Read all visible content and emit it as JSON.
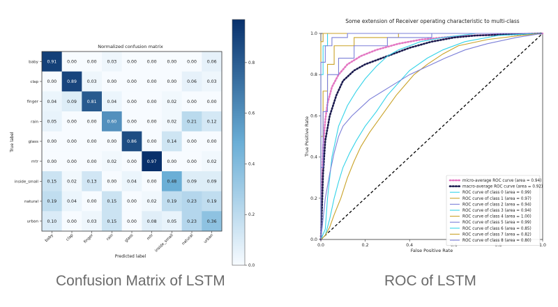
{
  "captions": {
    "left": "Confusion Matrix of LSTM",
    "right": "ROC of LSTM"
  },
  "colors": {
    "cmap_low": "#f7fbff",
    "cmap_mid": "#6aaed6",
    "cmap_high": "#08306b",
    "micro": "#e377c2",
    "macro": "#1a1a4e",
    "diagonal": "#000000",
    "class_colors": [
      "#33d3e8",
      "#c9a227",
      "#7b7fd8",
      "#33d3e8",
      "#c9a227",
      "#7b7fd8",
      "#33d3e8",
      "#c9a227",
      "#7b7fd8"
    ]
  },
  "chart_data": [
    {
      "type": "heatmap",
      "title": "Normalized confusion matrix",
      "xlabel": "Predicted label",
      "ylabel": "True label",
      "labels": [
        "baby",
        "clap",
        "finger",
        "rain",
        "glass",
        "mtr",
        "inside_small",
        "natural",
        "urban"
      ],
      "values": [
        [
          0.91,
          0.0,
          0.0,
          0.03,
          0.0,
          0.0,
          0.0,
          0.0,
          0.06
        ],
        [
          0.0,
          0.89,
          0.03,
          0.0,
          0.0,
          0.0,
          0.0,
          0.06,
          0.03
        ],
        [
          0.04,
          0.09,
          0.81,
          0.04,
          0.0,
          0.0,
          0.02,
          0.0,
          0.0
        ],
        [
          0.05,
          0.0,
          0.0,
          0.6,
          0.0,
          0.0,
          0.02,
          0.21,
          0.12
        ],
        [
          0.0,
          0.0,
          0.0,
          0.0,
          0.86,
          0.0,
          0.14,
          0.0,
          0.0
        ],
        [
          0.0,
          0.0,
          0.0,
          0.02,
          0.0,
          0.97,
          0.0,
          0.0,
          0.02
        ],
        [
          0.15,
          0.02,
          0.13,
          0.0,
          0.04,
          0.0,
          0.48,
          0.09,
          0.09
        ],
        [
          0.19,
          0.04,
          0.0,
          0.15,
          0.0,
          0.02,
          0.19,
          0.23,
          0.19
        ],
        [
          0.1,
          0.0,
          0.03,
          0.15,
          0.0,
          0.08,
          0.05,
          0.23,
          0.36
        ]
      ],
      "value_labels": [
        [
          "0.91",
          "0.00",
          "0.00",
          "0.03",
          "0.00",
          "0.00",
          "0.00",
          "0.00",
          "0.06"
        ],
        [
          "0.00",
          "0.89",
          "0.03",
          "0.00",
          "0.00",
          "0.00",
          "0.00",
          "0.06",
          "0.03"
        ],
        [
          "0.04",
          "0.09",
          "0.81",
          "0.04",
          "0.00",
          "0.00",
          "0.02",
          "0.00",
          "0.00"
        ],
        [
          "0.05",
          "0.00",
          "0.00",
          "0.60",
          "0.00",
          "0.00",
          "0.02",
          "0.21",
          "0.12"
        ],
        [
          "0.00",
          "0.00",
          "0.00",
          "0.00",
          "0.86",
          "0.00",
          "0.14",
          "0.00",
          "0.00"
        ],
        [
          "0.00",
          "0.00",
          "0.00",
          "0.02",
          "0.00",
          "0.97",
          "0.00",
          "0.00",
          "0.02"
        ],
        [
          "0.15",
          "0.02",
          "0.13",
          "0.00",
          "0.04",
          "0.00",
          "0.48",
          "0.09",
          "0.09"
        ],
        [
          "0.19",
          "0.04",
          "0.00",
          "0.15",
          "0.00",
          "0.02",
          "0.19",
          "0.23",
          "0.19"
        ],
        [
          "0.10",
          "0.00",
          "0.03",
          "0.15",
          "0.00",
          "0.08",
          "0.05",
          "0.23",
          "0.36"
        ]
      ],
      "colorbar": {
        "range": [
          0,
          0.97
        ],
        "ticks": [
          0.0,
          0.2,
          0.4,
          0.6,
          0.8
        ],
        "tick_labels": [
          "0.0",
          "0.2",
          "0.4",
          "0.6",
          "0.8"
        ]
      }
    },
    {
      "type": "line",
      "title": "Some extension of Receiver operating characteristic to multi-class",
      "xlabel": "False Positive Rate",
      "ylabel": "True Positive Rate",
      "xlim": [
        0.0,
        1.0
      ],
      "ylim": [
        0.0,
        1.0
      ],
      "xticks": [
        "0.0",
        "0.2",
        "0.4",
        "0.6",
        "0.8",
        "1.0"
      ],
      "yticks": [
        "0.0",
        "0.2",
        "0.4",
        "0.6",
        "0.8",
        "1.0"
      ],
      "legend_position": "lower right",
      "series": [
        {
          "name": "micro-average ROC curve (area = 0.94)",
          "style": "dotted",
          "color_key": "micro",
          "points": [
            [
              0,
              0
            ],
            [
              0.005,
              0.25
            ],
            [
              0.01,
              0.45
            ],
            [
              0.02,
              0.58
            ],
            [
              0.03,
              0.66
            ],
            [
              0.05,
              0.74
            ],
            [
              0.08,
              0.8
            ],
            [
              0.12,
              0.85
            ],
            [
              0.18,
              0.89
            ],
            [
              0.25,
              0.92
            ],
            [
              0.35,
              0.95
            ],
            [
              0.45,
              0.97
            ],
            [
              0.6,
              0.985
            ],
            [
              0.8,
              0.995
            ],
            [
              1,
              1
            ]
          ]
        },
        {
          "name": "macro-average ROC curve (area = 0.92)",
          "style": "dotted",
          "color_key": "macro",
          "points": [
            [
              0,
              0
            ],
            [
              0.005,
              0.15
            ],
            [
              0.01,
              0.32
            ],
            [
              0.02,
              0.48
            ],
            [
              0.04,
              0.6
            ],
            [
              0.07,
              0.7
            ],
            [
              0.1,
              0.77
            ],
            [
              0.15,
              0.82
            ],
            [
              0.2,
              0.85
            ],
            [
              0.25,
              0.87
            ],
            [
              0.3,
              0.89
            ],
            [
              0.4,
              0.93
            ],
            [
              0.5,
              0.96
            ],
            [
              0.6,
              0.98
            ],
            [
              0.7,
              0.99
            ],
            [
              1,
              1
            ]
          ]
        },
        {
          "name": "ROC curve of class 0 (area = 0.99)",
          "color_index": 0,
          "points": [
            [
              0,
              0
            ],
            [
              0,
              0.8
            ],
            [
              0.01,
              0.8
            ],
            [
              0.01,
              0.94
            ],
            [
              0.03,
              0.94
            ],
            [
              0.03,
              1.0
            ],
            [
              1,
              1
            ]
          ]
        },
        {
          "name": "ROC curve of class 1 (area = 0.97)",
          "color_index": 1,
          "points": [
            [
              0,
              0
            ],
            [
              0,
              0.5
            ],
            [
              0.01,
              0.5
            ],
            [
              0.01,
              0.72
            ],
            [
              0.03,
              0.72
            ],
            [
              0.03,
              0.85
            ],
            [
              0.06,
              0.85
            ],
            [
              0.06,
              0.94
            ],
            [
              0.15,
              0.94
            ],
            [
              0.15,
              0.98
            ],
            [
              0.35,
              0.98
            ],
            [
              0.35,
              1.0
            ],
            [
              1,
              1
            ]
          ]
        },
        {
          "name": "ROC curve of class 2 (area = 0.94)",
          "color_index": 2,
          "points": [
            [
              0,
              0
            ],
            [
              0,
              0.35
            ],
            [
              0.01,
              0.35
            ],
            [
              0.01,
              0.62
            ],
            [
              0.03,
              0.62
            ],
            [
              0.03,
              0.8
            ],
            [
              0.08,
              0.8
            ],
            [
              0.08,
              0.88
            ],
            [
              0.15,
              0.88
            ],
            [
              0.15,
              0.94
            ],
            [
              0.3,
              0.94
            ],
            [
              0.3,
              0.98
            ],
            [
              0.5,
              0.98
            ],
            [
              0.5,
              1.0
            ],
            [
              1,
              1
            ]
          ]
        },
        {
          "name": "ROC curve of class 3 (area = 0.94)",
          "color_index": 3,
          "points": [
            [
              0,
              0
            ],
            [
              0.02,
              0.05
            ],
            [
              0.03,
              0.2
            ],
            [
              0.05,
              0.4
            ],
            [
              0.08,
              0.55
            ],
            [
              0.12,
              0.65
            ],
            [
              0.16,
              0.72
            ],
            [
              0.2,
              0.78
            ],
            [
              0.25,
              0.84
            ],
            [
              0.3,
              0.89
            ],
            [
              0.35,
              0.92
            ],
            [
              0.45,
              0.96
            ],
            [
              0.55,
              0.98
            ],
            [
              0.7,
              1.0
            ],
            [
              1,
              1
            ]
          ]
        },
        {
          "name": "ROC curve of class 4 (area = 1.00)",
          "color_index": 4,
          "points": [
            [
              0,
              0
            ],
            [
              0,
              0.96
            ],
            [
              0.01,
              0.96
            ],
            [
              0.01,
              1.0
            ],
            [
              1,
              1
            ]
          ]
        },
        {
          "name": "ROC curve of class 5 (area = 0.99)",
          "color_index": 5,
          "points": [
            [
              0,
              0
            ],
            [
              0,
              0.86
            ],
            [
              0.02,
              0.86
            ],
            [
              0.02,
              0.94
            ],
            [
              0.05,
              0.94
            ],
            [
              0.05,
              0.98
            ],
            [
              0.12,
              0.98
            ],
            [
              0.12,
              1.0
            ],
            [
              1,
              1
            ]
          ]
        },
        {
          "name": "ROC curve of class 6 (area = 0.85)",
          "color_index": 6,
          "points": [
            [
              0,
              0
            ],
            [
              0.02,
              0.02
            ],
            [
              0.04,
              0.1
            ],
            [
              0.06,
              0.2
            ],
            [
              0.08,
              0.28
            ],
            [
              0.1,
              0.35
            ],
            [
              0.13,
              0.42
            ],
            [
              0.16,
              0.48
            ],
            [
              0.2,
              0.55
            ],
            [
              0.25,
              0.62
            ],
            [
              0.3,
              0.7
            ],
            [
              0.35,
              0.76
            ],
            [
              0.4,
              0.82
            ],
            [
              0.48,
              0.88
            ],
            [
              0.55,
              0.92
            ],
            [
              0.65,
              0.96
            ],
            [
              0.8,
              0.99
            ],
            [
              1,
              1
            ]
          ]
        },
        {
          "name": "ROC curve of class 7 (area = 0.82)",
          "color_index": 7,
          "points": [
            [
              0,
              0
            ],
            [
              0.02,
              0.02
            ],
            [
              0.04,
              0.06
            ],
            [
              0.06,
              0.12
            ],
            [
              0.09,
              0.2
            ],
            [
              0.12,
              0.3
            ],
            [
              0.15,
              0.38
            ],
            [
              0.18,
              0.45
            ],
            [
              0.22,
              0.52
            ],
            [
              0.26,
              0.58
            ],
            [
              0.3,
              0.64
            ],
            [
              0.34,
              0.7
            ],
            [
              0.38,
              0.75
            ],
            [
              0.42,
              0.8
            ],
            [
              0.48,
              0.85
            ],
            [
              0.55,
              0.9
            ],
            [
              0.62,
              0.94
            ],
            [
              0.75,
              0.97
            ],
            [
              0.9,
              0.99
            ],
            [
              1,
              1
            ]
          ]
        },
        {
          "name": "ROC curve of class 8 (area = 0.80)",
          "color_index": 8,
          "points": [
            [
              0,
              0
            ],
            [
              0.01,
              0.1
            ],
            [
              0.02,
              0.2
            ],
            [
              0.04,
              0.32
            ],
            [
              0.06,
              0.42
            ],
            [
              0.08,
              0.5
            ],
            [
              0.1,
              0.55
            ],
            [
              0.14,
              0.6
            ],
            [
              0.18,
              0.64
            ],
            [
              0.22,
              0.68
            ],
            [
              0.28,
              0.72
            ],
            [
              0.34,
              0.76
            ],
            [
              0.4,
              0.8
            ],
            [
              0.48,
              0.84
            ],
            [
              0.56,
              0.88
            ],
            [
              0.65,
              0.92
            ],
            [
              0.75,
              0.95
            ],
            [
              0.88,
              0.98
            ],
            [
              1,
              1
            ]
          ]
        }
      ]
    }
  ]
}
